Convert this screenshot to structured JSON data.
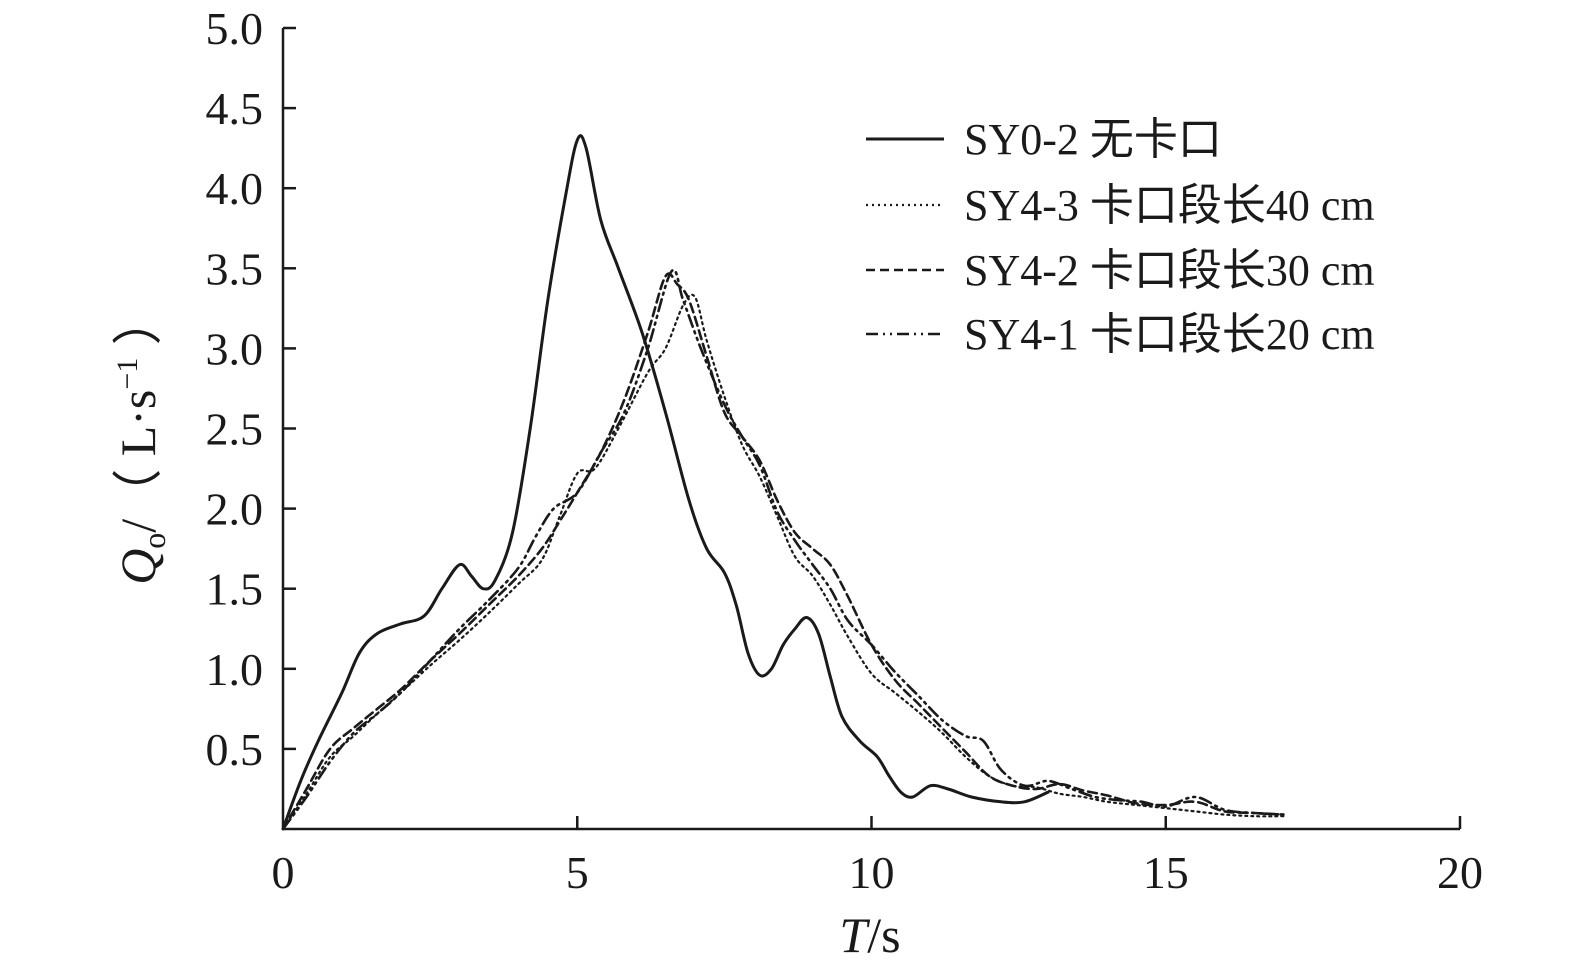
{
  "chart_data": {
    "type": "line",
    "xlabel": {
      "main": "T",
      "unit": "/s"
    },
    "ylabel": {
      "main": "Q",
      "sub": "o",
      "slash": "/",
      "open": "（ L·s",
      "sup": "−1",
      "close": " ）"
    },
    "xlim": [
      0,
      20
    ],
    "ylim": [
      0,
      5
    ],
    "xticks": [
      0,
      5,
      10,
      15,
      20
    ],
    "yticks": [
      0.5,
      1.0,
      1.5,
      2.0,
      2.5,
      3.0,
      3.5,
      4.0,
      4.5,
      5.0
    ],
    "ytick_labels": [
      "0.5",
      "1.0",
      "1.5",
      "2.0",
      "2.5",
      "3.0",
      "3.5",
      "4.0",
      "4.5",
      "5.0"
    ],
    "xtick_labels": [
      "0",
      "5",
      "10",
      "15",
      "20"
    ],
    "grid": false,
    "legend_position": "top-right",
    "series": [
      {
        "name": "SY0-2 无卡口",
        "style": "solid",
        "color": "#1a1a1a",
        "points": [
          [
            0,
            0
          ],
          [
            0.3,
            0.3
          ],
          [
            0.6,
            0.55
          ],
          [
            1.0,
            0.85
          ],
          [
            1.3,
            1.1
          ],
          [
            1.6,
            1.22
          ],
          [
            2.0,
            1.28
          ],
          [
            2.4,
            1.33
          ],
          [
            2.7,
            1.5
          ],
          [
            3.0,
            1.65
          ],
          [
            3.2,
            1.58
          ],
          [
            3.4,
            1.5
          ],
          [
            3.6,
            1.55
          ],
          [
            3.9,
            1.85
          ],
          [
            4.2,
            2.5
          ],
          [
            4.5,
            3.3
          ],
          [
            4.8,
            3.95
          ],
          [
            5.0,
            4.3
          ],
          [
            5.15,
            4.25
          ],
          [
            5.4,
            3.8
          ],
          [
            5.7,
            3.5
          ],
          [
            6.1,
            3.1
          ],
          [
            6.5,
            2.6
          ],
          [
            6.9,
            2.05
          ],
          [
            7.2,
            1.75
          ],
          [
            7.5,
            1.6
          ],
          [
            7.7,
            1.4
          ],
          [
            7.9,
            1.1
          ],
          [
            8.1,
            0.96
          ],
          [
            8.3,
            1.0
          ],
          [
            8.5,
            1.15
          ],
          [
            8.7,
            1.25
          ],
          [
            8.9,
            1.32
          ],
          [
            9.1,
            1.22
          ],
          [
            9.3,
            0.95
          ],
          [
            9.5,
            0.7
          ],
          [
            9.8,
            0.55
          ],
          [
            10.1,
            0.45
          ],
          [
            10.3,
            0.33
          ],
          [
            10.5,
            0.23
          ],
          [
            10.7,
            0.2
          ],
          [
            11.0,
            0.27
          ],
          [
            11.3,
            0.25
          ],
          [
            11.7,
            0.2
          ],
          [
            12.2,
            0.17
          ],
          [
            12.6,
            0.17
          ],
          [
            13.0,
            0.23
          ]
        ]
      },
      {
        "name": "SY4-3 卡口段长40 cm",
        "style": "dotted",
        "color": "#1a1a1a",
        "points": [
          [
            0,
            0
          ],
          [
            0.4,
            0.22
          ],
          [
            0.8,
            0.45
          ],
          [
            1.2,
            0.58
          ],
          [
            1.6,
            0.72
          ],
          [
            2.0,
            0.85
          ],
          [
            2.5,
            1.02
          ],
          [
            3.0,
            1.18
          ],
          [
            3.5,
            1.35
          ],
          [
            4.0,
            1.53
          ],
          [
            4.4,
            1.68
          ],
          [
            4.7,
            1.95
          ],
          [
            5.0,
            2.22
          ],
          [
            5.3,
            2.25
          ],
          [
            5.7,
            2.5
          ],
          [
            6.2,
            2.85
          ],
          [
            6.5,
            3.0
          ],
          [
            6.8,
            3.27
          ],
          [
            7.0,
            3.32
          ],
          [
            7.2,
            3.05
          ],
          [
            7.5,
            2.7
          ],
          [
            7.8,
            2.4
          ],
          [
            8.1,
            2.2
          ],
          [
            8.4,
            1.95
          ],
          [
            8.7,
            1.7
          ],
          [
            9.0,
            1.58
          ],
          [
            9.3,
            1.4
          ],
          [
            9.6,
            1.2
          ],
          [
            10.0,
            0.97
          ],
          [
            10.4,
            0.85
          ],
          [
            10.8,
            0.73
          ],
          [
            11.2,
            0.6
          ],
          [
            11.6,
            0.45
          ],
          [
            12.0,
            0.33
          ],
          [
            12.4,
            0.27
          ],
          [
            12.8,
            0.26
          ],
          [
            13.2,
            0.22
          ],
          [
            13.6,
            0.2
          ],
          [
            14.0,
            0.17
          ],
          [
            14.5,
            0.15
          ],
          [
            15.0,
            0.13
          ],
          [
            15.5,
            0.11
          ],
          [
            16.0,
            0.09
          ],
          [
            16.5,
            0.08
          ],
          [
            17.0,
            0.08
          ]
        ]
      },
      {
        "name": "SY4-2 卡口段长30 cm",
        "style": "dashed",
        "color": "#1a1a1a",
        "points": [
          [
            0,
            0
          ],
          [
            0.4,
            0.25
          ],
          [
            0.8,
            0.5
          ],
          [
            1.2,
            0.63
          ],
          [
            1.6,
            0.75
          ],
          [
            2.0,
            0.87
          ],
          [
            2.5,
            1.05
          ],
          [
            3.0,
            1.22
          ],
          [
            3.5,
            1.4
          ],
          [
            4.0,
            1.58
          ],
          [
            4.4,
            1.75
          ],
          [
            4.7,
            1.92
          ],
          [
            5.0,
            2.1
          ],
          [
            5.4,
            2.35
          ],
          [
            5.8,
            2.68
          ],
          [
            6.2,
            3.1
          ],
          [
            6.5,
            3.45
          ],
          [
            6.7,
            3.4
          ],
          [
            6.9,
            3.3
          ],
          [
            7.2,
            2.95
          ],
          [
            7.5,
            2.6
          ],
          [
            7.8,
            2.45
          ],
          [
            8.1,
            2.3
          ],
          [
            8.4,
            2.05
          ],
          [
            8.7,
            1.85
          ],
          [
            9.0,
            1.75
          ],
          [
            9.3,
            1.65
          ],
          [
            9.6,
            1.45
          ],
          [
            10.0,
            1.15
          ],
          [
            10.4,
            0.93
          ],
          [
            10.8,
            0.78
          ],
          [
            11.2,
            0.63
          ],
          [
            11.6,
            0.48
          ],
          [
            12.0,
            0.33
          ],
          [
            12.4,
            0.27
          ],
          [
            12.8,
            0.25
          ],
          [
            13.2,
            0.28
          ],
          [
            13.6,
            0.24
          ],
          [
            14.0,
            0.21
          ],
          [
            14.5,
            0.16
          ],
          [
            15.0,
            0.15
          ],
          [
            15.5,
            0.17
          ],
          [
            16.0,
            0.11
          ],
          [
            16.5,
            0.1
          ],
          [
            17.0,
            0.09
          ]
        ]
      },
      {
        "name": "SY4-1 卡口段长20 cm",
        "style": "dashdot",
        "color": "#1a1a1a",
        "points": [
          [
            0,
            0
          ],
          [
            0.4,
            0.2
          ],
          [
            0.8,
            0.42
          ],
          [
            1.2,
            0.6
          ],
          [
            1.6,
            0.72
          ],
          [
            2.0,
            0.85
          ],
          [
            2.5,
            1.05
          ],
          [
            3.0,
            1.25
          ],
          [
            3.5,
            1.43
          ],
          [
            4.0,
            1.63
          ],
          [
            4.3,
            1.83
          ],
          [
            4.6,
            2.0
          ],
          [
            5.0,
            2.1
          ],
          [
            5.4,
            2.35
          ],
          [
            5.8,
            2.6
          ],
          [
            6.2,
            3.0
          ],
          [
            6.6,
            3.48
          ],
          [
            6.8,
            3.3
          ],
          [
            7.1,
            3.0
          ],
          [
            7.5,
            2.65
          ],
          [
            7.8,
            2.45
          ],
          [
            8.1,
            2.27
          ],
          [
            8.4,
            1.98
          ],
          [
            8.7,
            1.8
          ],
          [
            9.0,
            1.65
          ],
          [
            9.3,
            1.5
          ],
          [
            9.6,
            1.3
          ],
          [
            10.0,
            1.15
          ],
          [
            10.4,
            0.98
          ],
          [
            10.8,
            0.83
          ],
          [
            11.2,
            0.68
          ],
          [
            11.6,
            0.58
          ],
          [
            11.9,
            0.55
          ],
          [
            12.2,
            0.37
          ],
          [
            12.6,
            0.27
          ],
          [
            13.0,
            0.3
          ],
          [
            13.4,
            0.25
          ],
          [
            13.8,
            0.2
          ],
          [
            14.2,
            0.18
          ],
          [
            14.6,
            0.17
          ],
          [
            15.0,
            0.14
          ],
          [
            15.5,
            0.2
          ],
          [
            16.0,
            0.12
          ],
          [
            16.5,
            0.1
          ],
          [
            17.0,
            0.09
          ]
        ]
      }
    ]
  }
}
